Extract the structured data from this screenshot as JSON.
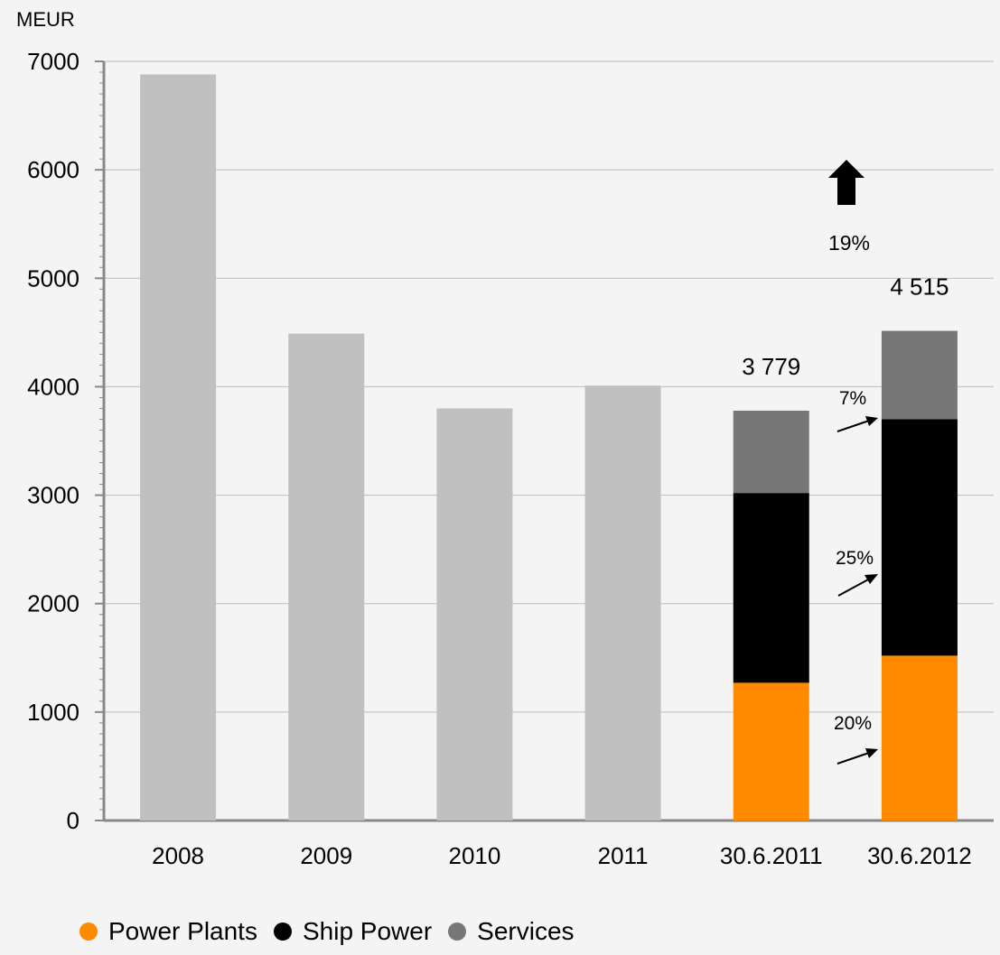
{
  "chart_data": {
    "type": "bar",
    "ylabel": "MEUR",
    "ylim": [
      0,
      7000
    ],
    "yticks": [
      0,
      1000,
      2000,
      3000,
      4000,
      5000,
      6000,
      7000
    ],
    "categories": [
      "2008",
      "2009",
      "2010",
      "2011",
      "30.6.2011",
      "30.6.2012"
    ],
    "totals": [
      6880,
      4490,
      3800,
      4010,
      3779,
      4515
    ],
    "stacked_series": [
      {
        "name": "Power Plants",
        "color": "#ff8a00",
        "values": [
          null,
          null,
          null,
          null,
          1270,
          1520
        ]
      },
      {
        "name": "Ship Power",
        "color": "#000000",
        "values": [
          null,
          null,
          null,
          null,
          1750,
          2180
        ]
      },
      {
        "name": "Services",
        "color": "#777777",
        "values": [
          null,
          null,
          null,
          null,
          759,
          815
        ]
      }
    ],
    "total_bar_color": "#c0c0c0",
    "data_labels": [
      {
        "category": "30.6.2011",
        "text": "3 779"
      },
      {
        "category": "30.6.2012",
        "text": "4 515"
      }
    ],
    "growth_annotations": {
      "total": "19%",
      "services": "7%",
      "ship_power": "25%",
      "power_plants": "20%"
    },
    "grid": true,
    "legend_position": "bottom-left"
  }
}
